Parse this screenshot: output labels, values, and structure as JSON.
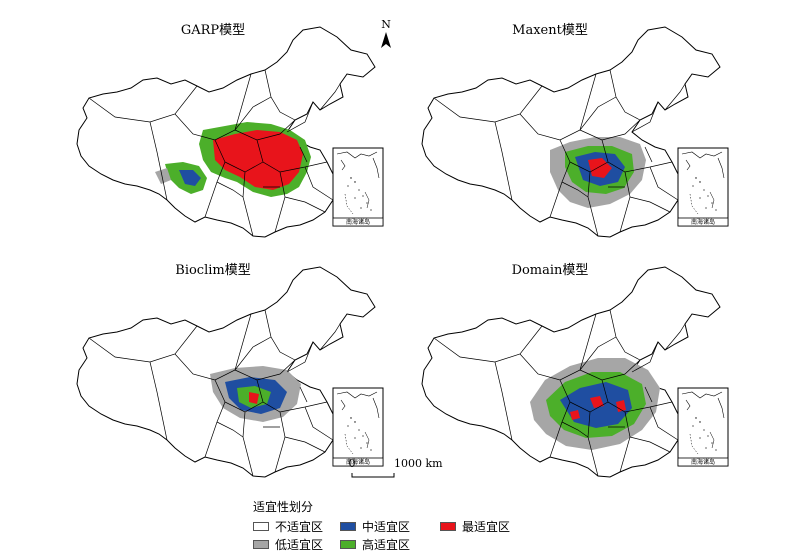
{
  "panels": [
    {
      "id": "garp",
      "title": "GARP模型"
    },
    {
      "id": "maxent",
      "title": "Maxent模型"
    },
    {
      "id": "bioclim",
      "title": "Bioclim模型"
    },
    {
      "id": "domain",
      "title": "Domain模型"
    }
  ],
  "inset_label": "南海诸岛",
  "north_label": "N",
  "scale_bar": {
    "start": "0",
    "end": "1000 km"
  },
  "legend": {
    "title": "适宜性划分",
    "items": [
      {
        "label": "不适宜区",
        "color": "#ffffff"
      },
      {
        "label": "低适宜区",
        "color": "#a6a6a6"
      },
      {
        "label": "中适宜区",
        "color": "#1f4ea1"
      },
      {
        "label": "高适宜区",
        "color": "#4caf2a"
      },
      {
        "label": "最适宜区",
        "color": "#e8141b"
      }
    ]
  }
}
